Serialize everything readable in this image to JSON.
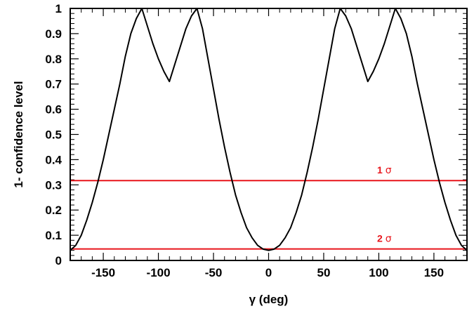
{
  "chart_data": {
    "type": "line",
    "title": "",
    "xlabel": "γ (deg)",
    "ylabel": "1- confidence level",
    "xlim": [
      -180,
      180
    ],
    "ylim": [
      0,
      1
    ],
    "x_ticks": [
      -150,
      -100,
      -50,
      0,
      50,
      100,
      150
    ],
    "x_tick_labels": [
      "-150",
      "-100",
      "-50",
      "0",
      "50",
      "100",
      "150"
    ],
    "y_ticks": [
      0,
      0.1,
      0.2,
      0.3,
      0.4,
      0.5,
      0.6,
      0.7,
      0.8,
      0.9,
      1
    ],
    "y_tick_labels": [
      "0",
      "0.1",
      "0.2",
      "0.3",
      "0.4",
      "0.5",
      "0.6",
      "0.7",
      "0.8",
      "0.9",
      "1"
    ],
    "grid": false,
    "series": [
      {
        "color": "#000000",
        "x": [
          -180,
          -175,
          -170,
          -165,
          -160,
          -155,
          -150,
          -145,
          -140,
          -135,
          -130,
          -125,
          -120,
          -115,
          -110,
          -105,
          -100,
          -95,
          -90,
          -85,
          -80,
          -75,
          -70,
          -65,
          -60,
          -55,
          -50,
          -45,
          -40,
          -35,
          -30,
          -25,
          -20,
          -15,
          -10,
          -5,
          0,
          5,
          10,
          15,
          20,
          25,
          30,
          35,
          40,
          45,
          50,
          55,
          60,
          65,
          70,
          75,
          80,
          85,
          90,
          95,
          100,
          105,
          110,
          115,
          120,
          125,
          130,
          135,
          140,
          145,
          150,
          155,
          160,
          165,
          170,
          175,
          180
        ],
        "y": [
          0.04,
          0.06,
          0.1,
          0.16,
          0.23,
          0.31,
          0.4,
          0.5,
          0.6,
          0.7,
          0.81,
          0.9,
          0.96,
          1.0,
          0.93,
          0.86,
          0.8,
          0.75,
          0.71,
          0.78,
          0.85,
          0.92,
          0.97,
          1.0,
          0.92,
          0.8,
          0.68,
          0.56,
          0.45,
          0.35,
          0.26,
          0.19,
          0.13,
          0.09,
          0.06,
          0.045,
          0.04,
          0.045,
          0.06,
          0.09,
          0.13,
          0.19,
          0.26,
          0.35,
          0.45,
          0.56,
          0.68,
          0.8,
          0.92,
          1.0,
          0.97,
          0.92,
          0.85,
          0.78,
          0.71,
          0.75,
          0.8,
          0.86,
          0.93,
          1.0,
          0.96,
          0.9,
          0.81,
          0.7,
          0.6,
          0.5,
          0.4,
          0.31,
          0.23,
          0.16,
          0.1,
          0.06,
          0.04
        ]
      }
    ],
    "reference_lines": [
      {
        "label": "1",
        "sigma_symbol": "σ",
        "y": 0.317,
        "color": "#e8151b",
        "label_x": 105
      },
      {
        "label": "2",
        "sigma_symbol": "σ",
        "y": 0.0455,
        "color": "#e8151b",
        "label_x": 105
      }
    ]
  }
}
